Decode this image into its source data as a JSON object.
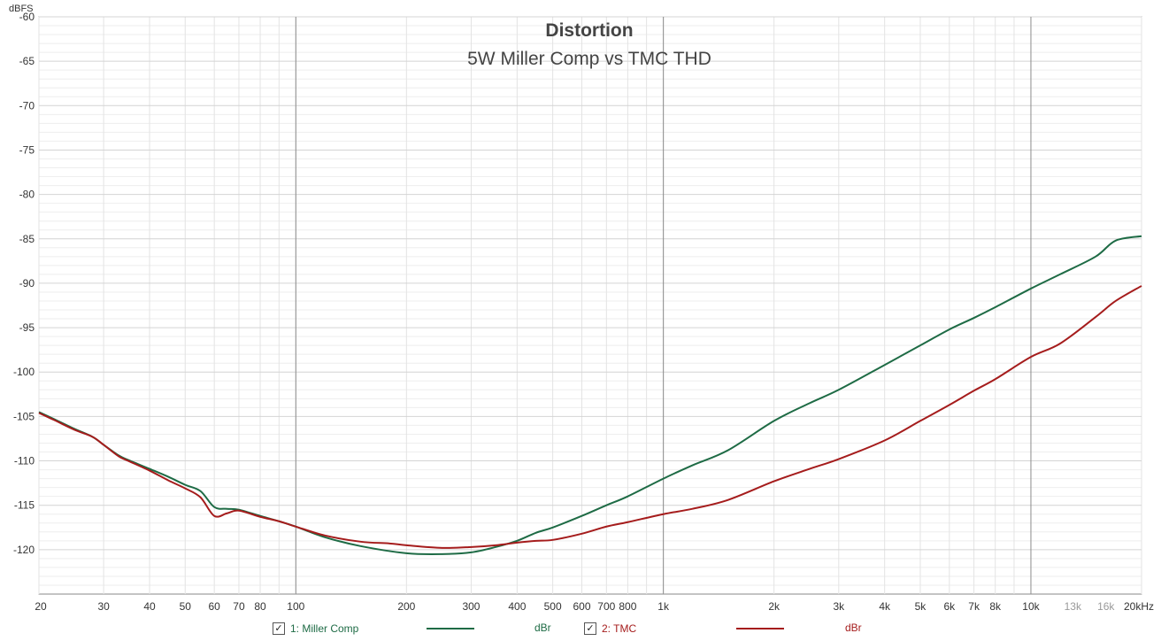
{
  "chart_data": {
    "type": "line",
    "title": "Distortion",
    "subtitle": "5W Miller Comp vs TMC THD",
    "ylabel": "dBFS",
    "xscale": "log",
    "xlim": [
      20,
      20000
    ],
    "ylim": [
      -125,
      -60
    ],
    "yticks": [
      -60,
      -65,
      -70,
      -75,
      -80,
      -85,
      -90,
      -95,
      -100,
      -105,
      -110,
      -115,
      -120
    ],
    "xticks": [
      {
        "v": 20,
        "label": "20",
        "dim": false
      },
      {
        "v": 30,
        "label": "30",
        "dim": false
      },
      {
        "v": 40,
        "label": "40",
        "dim": false
      },
      {
        "v": 50,
        "label": "50",
        "dim": false
      },
      {
        "v": 60,
        "label": "60",
        "dim": false
      },
      {
        "v": 70,
        "label": "70",
        "dim": false
      },
      {
        "v": 80,
        "label": "80",
        "dim": false
      },
      {
        "v": 100,
        "label": "100",
        "dim": false
      },
      {
        "v": 200,
        "label": "200",
        "dim": false
      },
      {
        "v": 300,
        "label": "300",
        "dim": false
      },
      {
        "v": 400,
        "label": "400",
        "dim": false
      },
      {
        "v": 500,
        "label": "500",
        "dim": false
      },
      {
        "v": 600,
        "label": "600",
        "dim": false
      },
      {
        "v": 700,
        "label": "700",
        "dim": false
      },
      {
        "v": 800,
        "label": "800",
        "dim": false
      },
      {
        "v": 1000,
        "label": "1k",
        "dim": false
      },
      {
        "v": 2000,
        "label": "2k",
        "dim": false
      },
      {
        "v": 3000,
        "label": "3k",
        "dim": false
      },
      {
        "v": 4000,
        "label": "4k",
        "dim": false
      },
      {
        "v": 5000,
        "label": "5k",
        "dim": false
      },
      {
        "v": 6000,
        "label": "6k",
        "dim": false
      },
      {
        "v": 7000,
        "label": "7k",
        "dim": false
      },
      {
        "v": 8000,
        "label": "8k",
        "dim": false
      },
      {
        "v": 10000,
        "label": "10k",
        "dim": false
      },
      {
        "v": 13000,
        "label": "13k",
        "dim": true
      },
      {
        "v": 16000,
        "label": "16k",
        "dim": true
      },
      {
        "v": 20000,
        "label": "20kHz",
        "dim": false
      }
    ],
    "grid": true,
    "legend_position": "bottom",
    "series": [
      {
        "name": "1: Miller Comp",
        "unit": "dBr",
        "color": "#1e6b45",
        "x": [
          20,
          22,
          25,
          28,
          30,
          33,
          35,
          40,
          45,
          50,
          55,
          60,
          65,
          70,
          80,
          90,
          100,
          120,
          150,
          200,
          250,
          300,
          350,
          400,
          450,
          500,
          600,
          700,
          800,
          1000,
          1200,
          1500,
          2000,
          2500,
          3000,
          4000,
          5000,
          6000,
          7000,
          8000,
          10000,
          12000,
          15000,
          17000,
          20000
        ],
        "y": [
          -104.5,
          -105.3,
          -106.4,
          -107.3,
          -108.2,
          -109.4,
          -109.9,
          -110.9,
          -111.8,
          -112.7,
          -113.4,
          -115.2,
          -115.4,
          -115.5,
          -116.2,
          -116.8,
          -117.4,
          -118.6,
          -119.6,
          -120.4,
          -120.5,
          -120.3,
          -119.7,
          -119.0,
          -118.1,
          -117.5,
          -116.2,
          -115.0,
          -114.0,
          -112.0,
          -110.5,
          -108.8,
          -105.5,
          -103.5,
          -102.0,
          -99.2,
          -97.0,
          -95.2,
          -93.9,
          -92.7,
          -90.6,
          -89.0,
          -87.0,
          -85.2,
          -84.7
        ]
      },
      {
        "name": "2: TMC",
        "unit": "dBr",
        "color": "#a51c1c",
        "x": [
          20,
          22,
          25,
          28,
          30,
          33,
          35,
          40,
          45,
          50,
          55,
          60,
          65,
          70,
          80,
          90,
          100,
          120,
          150,
          180,
          200,
          250,
          300,
          350,
          400,
          450,
          500,
          600,
          700,
          800,
          1000,
          1200,
          1500,
          2000,
          2500,
          3000,
          4000,
          5000,
          6000,
          7000,
          8000,
          10000,
          12000,
          15000,
          17000,
          20000
        ],
        "y": [
          -104.6,
          -105.4,
          -106.5,
          -107.3,
          -108.2,
          -109.5,
          -110.0,
          -111.1,
          -112.2,
          -113.1,
          -114.1,
          -116.2,
          -115.9,
          -115.6,
          -116.3,
          -116.8,
          -117.4,
          -118.4,
          -119.1,
          -119.3,
          -119.5,
          -119.8,
          -119.7,
          -119.5,
          -119.2,
          -119.0,
          -118.9,
          -118.2,
          -117.4,
          -116.9,
          -116.0,
          -115.4,
          -114.4,
          -112.3,
          -110.9,
          -109.8,
          -107.7,
          -105.5,
          -103.7,
          -102.1,
          -100.8,
          -98.3,
          -96.8,
          -93.8,
          -92.0,
          -90.3
        ]
      }
    ]
  },
  "legend": {
    "items": [
      {
        "check": "✓",
        "label": "1: Miller Comp",
        "unit": "dBr",
        "color": "#1e6b45"
      },
      {
        "check": "✓",
        "label": "2: TMC",
        "unit": "dBr",
        "color": "#a51c1c"
      }
    ]
  }
}
